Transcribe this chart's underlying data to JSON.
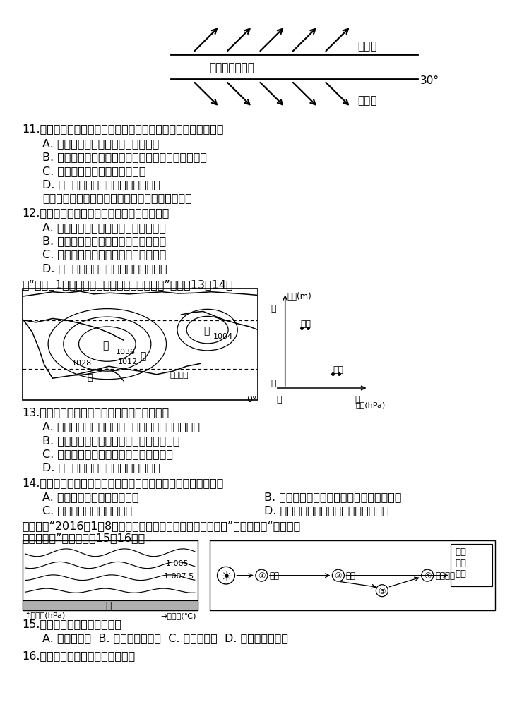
{
  "bg_color": "#ffffff",
  "q11_stem": "11.当气压带的纬度位置如图所示时，下列说法可信的是（　　）",
  "q11_A": "A. 地中海周围地区河流水补给地下水",
  "q11_B": "B. 乙风带南移，澳大利亚北部盛行来自海洋的西北风",
  "q11_C": "C. 蒙古一西伯利亚高压势力强盛",
  "q11_D": "D. 赤道以北的非洲热带草原一片葫綠",
  "q11_note": "如右图表示甲、乙、丙、丁四地之间的热力环流。",
  "q12_stem": "12.关于图示热力环流的叙述正确的是（　　）",
  "q12_A": "A. 热力环流使沿海地区气温日较差增大",
  "q12_B": "B. 若表示海陆间的热力环流，甲为海洋",
  "q12_C": "C. 若表示山谷间的热力环流，乙为山顶",
  "q12_D": "D. 若表示特大城市热力环流，甲为郊区",
  "q13_intro": "读“北半球1月份部分地区海平面等压线分布图”，完成13－14题",
  "q13_stem": "13.有关甲、乙气压中心叙述正确的是（　　）",
  "q13_A": "A. 甲为亚洲高压，因空气强烈受热收缩下沉而形成",
  "q13_B": "B. 乙为被保留在太平洋上的副极地低气压带",
  "q13_C": "C. 乙为阿留申低压，其中心盛行下沉气流",
  "q13_D": "D. 甲切断的气压带是副热带高气压带",
  "q14_stem": "14.此季节，有关丙、丁两地的风向或成因表述正确的是（　　）",
  "q14_A": "A. 丙地盛行东南风，温暖湿润",
  "q14_B": "B. 丁地风向的成因是气压带风带的季节移动",
  "q14_C": "C. 丁地盛行西北风，寒冷干燥",
  "q14_D": "D. 丙地风向的成因是海陆热力性质差异",
  "q15_intro1": "下左图为“2016年1月8日我国某地气温和气压垂直变化示意图”，下右图为“大气受热",
  "q15_intro2": "过程示意图”。读图完成15－16题。",
  "q15_stem": "15.该日，甲地最可能（　　）",
  "q15_opts": "A. 受气旋控制  B. 受台风系统影响  C. 受冷锋影响  D. 受亚洲高压控制",
  "q16_stem": "16.与周围地区相比，甲地（　　）"
}
